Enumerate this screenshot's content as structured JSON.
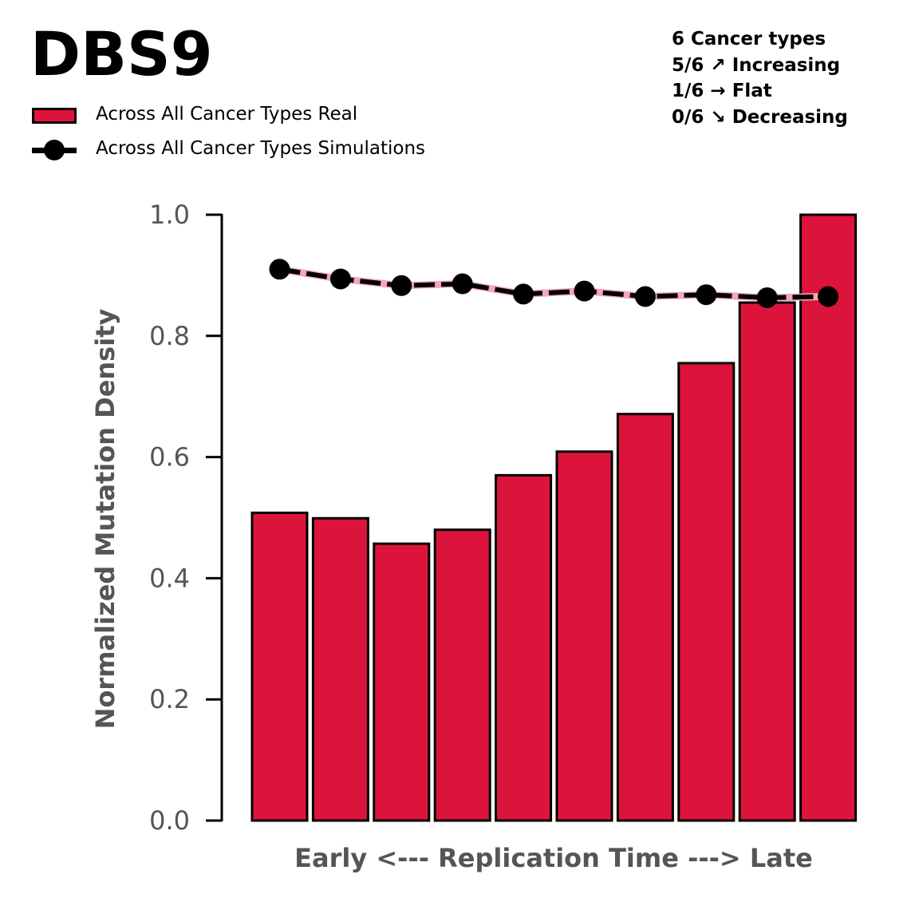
{
  "chart_data": {
    "type": "bar",
    "title": "DBS9",
    "xlabel": "Early <--- Replication Time ---> Late",
    "ylabel": "Normalized Mutation Density",
    "ylim": [
      0,
      1.0
    ],
    "yticks": [
      "0.0",
      "0.2",
      "0.4",
      "0.6",
      "0.8",
      "1.0"
    ],
    "grid": false,
    "legend_position": "top-left",
    "legend": [
      {
        "label": "Across All Cancer Types Real",
        "kind": "bar"
      },
      {
        "label": "Across All Cancer Types Simulations",
        "kind": "line-marker"
      }
    ],
    "series": [
      {
        "name": "Across All Cancer Types Real",
        "type": "bar",
        "color": "#DC143C",
        "values": [
          0.508,
          0.499,
          0.457,
          0.48,
          0.57,
          0.609,
          0.671,
          0.755,
          0.855,
          1.0
        ]
      },
      {
        "name": "Across All Cancer Types Simulations",
        "type": "line",
        "color": "#000000",
        "band_color": "#F4A6B8",
        "values": [
          0.91,
          0.894,
          0.883,
          0.886,
          0.869,
          0.874,
          0.865,
          0.868,
          0.863,
          0.865
        ]
      }
    ],
    "annotation": [
      "6 Cancer types",
      "5/6 ↗ Increasing",
      "1/6 → Flat",
      "0/6 ↘ Decreasing"
    ]
  }
}
